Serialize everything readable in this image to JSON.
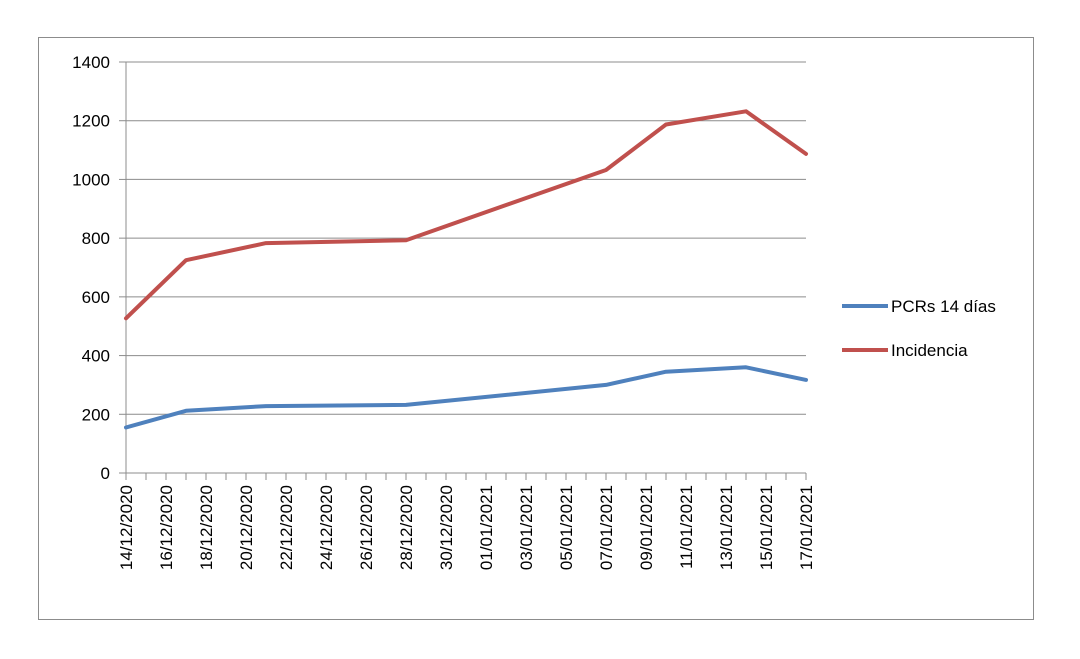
{
  "chart_data": {
    "type": "line",
    "title": "",
    "xlabel": "",
    "ylabel": "",
    "ylim": [
      0,
      1400
    ],
    "yticks": [
      0,
      200,
      400,
      600,
      800,
      1000,
      1200,
      1400
    ],
    "categories": [
      "14/12/2020",
      "15/12/2020",
      "16/12/2020",
      "17/12/2020",
      "18/12/2020",
      "19/12/2020",
      "20/12/2020",
      "21/12/2020",
      "22/12/2020",
      "23/12/2020",
      "24/12/2020",
      "25/12/2020",
      "26/12/2020",
      "27/12/2020",
      "28/12/2020",
      "29/12/2020",
      "30/12/2020",
      "31/12/2020",
      "01/01/2021",
      "02/01/2021",
      "03/01/2021",
      "04/01/2021",
      "05/01/2021",
      "06/01/2021",
      "07/01/2021",
      "08/01/2021",
      "09/01/2021",
      "10/01/2021",
      "11/01/2021",
      "12/01/2021",
      "13/01/2021",
      "14/01/2021",
      "15/01/2021",
      "16/01/2021",
      "17/01/2021"
    ],
    "tick_labels": [
      "14/12/2020",
      "16/12/2020",
      "18/12/2020",
      "20/12/2020",
      "22/12/2020",
      "24/12/2020",
      "26/12/2020",
      "28/12/2020",
      "30/12/2020",
      "01/01/2021",
      "03/01/2021",
      "05/01/2021",
      "07/01/2021",
      "09/01/2021",
      "11/01/2021",
      "13/01/2021",
      "15/01/2021",
      "17/01/2021"
    ],
    "series": [
      {
        "name": "PCRs 14 días",
        "color": "#4f81bd",
        "points": [
          [
            "14/12/2020",
            155
          ],
          [
            "17/12/2020",
            212
          ],
          [
            "21/12/2020",
            228
          ],
          [
            "28/12/2020",
            232
          ],
          [
            "07/01/2021",
            300
          ],
          [
            "10/01/2021",
            345
          ],
          [
            "14/01/2021",
            360
          ],
          [
            "17/01/2021",
            317
          ]
        ]
      },
      {
        "name": "Incidencia",
        "color": "#c0504d",
        "points": [
          [
            "14/12/2020",
            527
          ],
          [
            "17/12/2020",
            725
          ],
          [
            "21/12/2020",
            783
          ],
          [
            "28/12/2020",
            793
          ],
          [
            "07/01/2021",
            1032
          ],
          [
            "10/01/2021",
            1187
          ],
          [
            "14/01/2021",
            1232
          ],
          [
            "17/01/2021",
            1087
          ]
        ]
      }
    ],
    "grid": true,
    "legend_position": "right"
  }
}
